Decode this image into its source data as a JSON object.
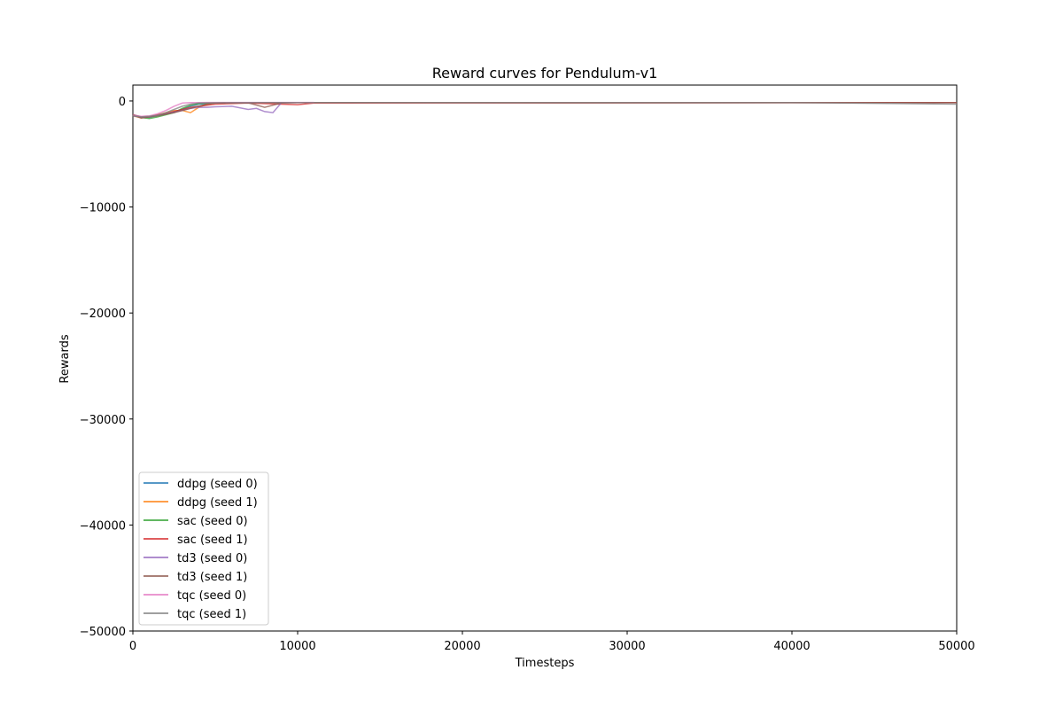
{
  "chart_data": {
    "type": "line",
    "title": "Reward curves for Pendulum-v1",
    "xlabel": "Timesteps",
    "ylabel": "Rewards",
    "xlim": [
      0,
      50000
    ],
    "ylim": [
      -50000,
      1500
    ],
    "xticks": [
      0,
      10000,
      20000,
      30000,
      40000,
      50000
    ],
    "yticks": [
      0,
      -10000,
      -20000,
      -30000,
      -40000,
      -50000
    ],
    "grid": false,
    "legend_position": "lower-left",
    "series": [
      {
        "name": "ddpg (seed 0)",
        "color": "#1f77b4",
        "x": [
          0,
          500,
          1000,
          1500,
          2000,
          2500,
          3000,
          3500,
          4000,
          4500,
          5000,
          6000,
          7000,
          8000,
          9000,
          10000,
          11000
        ],
        "y": [
          -1300,
          -1500,
          -1550,
          -1350,
          -1200,
          -1000,
          -800,
          -500,
          -300,
          -250,
          -200,
          -180,
          -170,
          -160,
          -160,
          -155,
          -150
        ]
      },
      {
        "name": "ddpg (seed 1)",
        "color": "#ff7f0e",
        "x": [
          0,
          500,
          1000,
          1500,
          2000,
          2500,
          3000,
          3500,
          4000,
          4500,
          5000,
          6000,
          7000,
          8000,
          9000,
          10000,
          11000
        ],
        "y": [
          -1400,
          -1600,
          -1500,
          -1300,
          -1100,
          -900,
          -900,
          -1100,
          -600,
          -300,
          -200,
          -180,
          -170,
          -160,
          -160,
          -155,
          -150
        ]
      },
      {
        "name": "sac (seed 0)",
        "color": "#2ca02c",
        "x": [
          0,
          500,
          1000,
          1500,
          2000,
          2500,
          3000,
          3500,
          4000,
          4500,
          5000,
          6000,
          7000,
          8000,
          9000,
          10000,
          11000
        ],
        "y": [
          -1350,
          -1550,
          -1650,
          -1500,
          -1300,
          -1100,
          -700,
          -400,
          -250,
          -200,
          -180,
          -170,
          -160,
          -160,
          -155,
          -150,
          -150
        ]
      },
      {
        "name": "sac (seed 1)",
        "color": "#d62728",
        "x": [
          0,
          500,
          1000,
          1500,
          2000,
          2500,
          3000,
          3500,
          4000,
          4500,
          5000,
          6000,
          7000,
          8000,
          9000,
          10000,
          11000,
          50000
        ],
        "y": [
          -1300,
          -1500,
          -1450,
          -1300,
          -1200,
          -1000,
          -800,
          -600,
          -500,
          -400,
          -300,
          -250,
          -200,
          -250,
          -300,
          -350,
          -200,
          -150
        ]
      },
      {
        "name": "td3 (seed 0)",
        "color": "#9467bd",
        "x": [
          0,
          500,
          1000,
          1500,
          2000,
          2500,
          3000,
          3500,
          4000,
          4500,
          5000,
          6000,
          7000,
          7500,
          8000,
          8500,
          9000
        ],
        "y": [
          -1400,
          -1550,
          -1500,
          -1350,
          -1200,
          -1050,
          -900,
          -700,
          -600,
          -600,
          -550,
          -500,
          -800,
          -700,
          -1000,
          -1100,
          -200
        ]
      },
      {
        "name": "td3 (seed 1)",
        "color": "#8c564b",
        "x": [
          0,
          500,
          1000,
          1500,
          2000,
          2500,
          3000,
          3500,
          4000,
          4500,
          5000,
          6000,
          7000,
          8000,
          9000,
          10000,
          11000,
          20000,
          30000,
          40000,
          50000
        ],
        "y": [
          -1300,
          -1600,
          -1500,
          -1400,
          -1250,
          -1100,
          -900,
          -700,
          -500,
          -300,
          -200,
          -180,
          -170,
          -600,
          -200,
          -160,
          -150,
          -160,
          -170,
          -160,
          -150
        ]
      },
      {
        "name": "tqc (seed 0)",
        "color": "#e377c2",
        "x": [
          0,
          500,
          1000,
          1500,
          2000,
          2500,
          3000,
          3500,
          4000,
          4500,
          5000,
          6000,
          7000,
          8000,
          9000,
          10000,
          11000
        ],
        "y": [
          -1350,
          -1450,
          -1400,
          -1200,
          -900,
          -500,
          -200,
          -150,
          -150,
          -140,
          -140,
          -140,
          -140,
          -140,
          -140,
          -140,
          -140
        ]
      },
      {
        "name": "tqc (seed 1)",
        "color": "#7f7f7f",
        "x": [
          0,
          500,
          1000,
          1500,
          2000,
          2500,
          3000,
          3500,
          4000,
          4500,
          5000,
          6000,
          7000,
          8000,
          9000,
          10000,
          11000,
          20000,
          30000,
          40000,
          50000
        ],
        "y": [
          -1400,
          -1500,
          -1450,
          -1350,
          -1100,
          -800,
          -500,
          -300,
          -200,
          -180,
          -170,
          -160,
          -160,
          -155,
          -150,
          -150,
          -150,
          -150,
          -150,
          -150,
          -300
        ]
      }
    ]
  }
}
